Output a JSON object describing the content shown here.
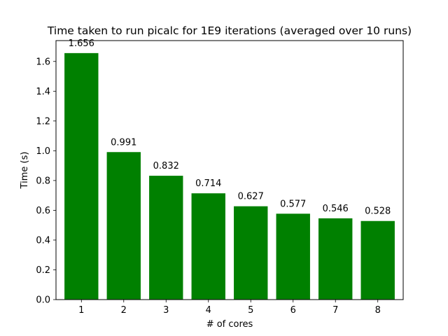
{
  "chart_data": {
    "type": "bar",
    "title": "Time taken to run picalc for 1E9 iterations (averaged over 10 runs)",
    "xlabel": "# of cores",
    "ylabel": "Time (s)",
    "categories": [
      "1",
      "2",
      "3",
      "4",
      "5",
      "6",
      "7",
      "8"
    ],
    "values": [
      1.656,
      0.991,
      0.832,
      0.714,
      0.627,
      0.577,
      0.546,
      0.528
    ],
    "data_labels": [
      "1.656",
      "0.991",
      "0.832",
      "0.714",
      "0.627",
      "0.577",
      "0.546",
      "0.528"
    ],
    "ylim": [
      0,
      1.74
    ],
    "yticks": [
      0.0,
      0.2,
      0.4,
      0.6,
      0.8,
      1.0,
      1.2,
      1.4,
      1.6
    ],
    "ytick_labels": [
      "0.0",
      "0.2",
      "0.4",
      "0.6",
      "0.8",
      "1.0",
      "1.2",
      "1.4",
      "1.6"
    ],
    "bar_color": "#008000",
    "grid": false,
    "legend": false
  }
}
